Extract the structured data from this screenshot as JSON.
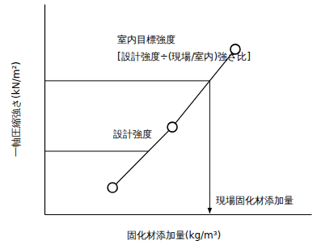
{
  "chart_data": {
    "type": "line",
    "x_label": "固化材添加量(kg/m³)",
    "y_label": "一軸圧縮強さ(kN/m²)",
    "x": [
      25.5,
      47.9,
      71.5
    ],
    "values": [
      12.7,
      41.5,
      78.5
    ],
    "color": "#000000",
    "marker": "circle",
    "xlim": [
      0,
      100
    ],
    "ylim": [
      0,
      100
    ],
    "xticks": [],
    "yticks": [],
    "tick_labels": false,
    "reference_lines": [
      {
        "label": [
          "室内目標強度",
          "[設計強度÷(現場/室内)強さ比]"
        ],
        "y": 63.5
      },
      {
        "label": [
          "設計強度"
        ],
        "y": 30
      }
    ],
    "annotations": [
      "現場固化材添加量"
    ]
  }
}
